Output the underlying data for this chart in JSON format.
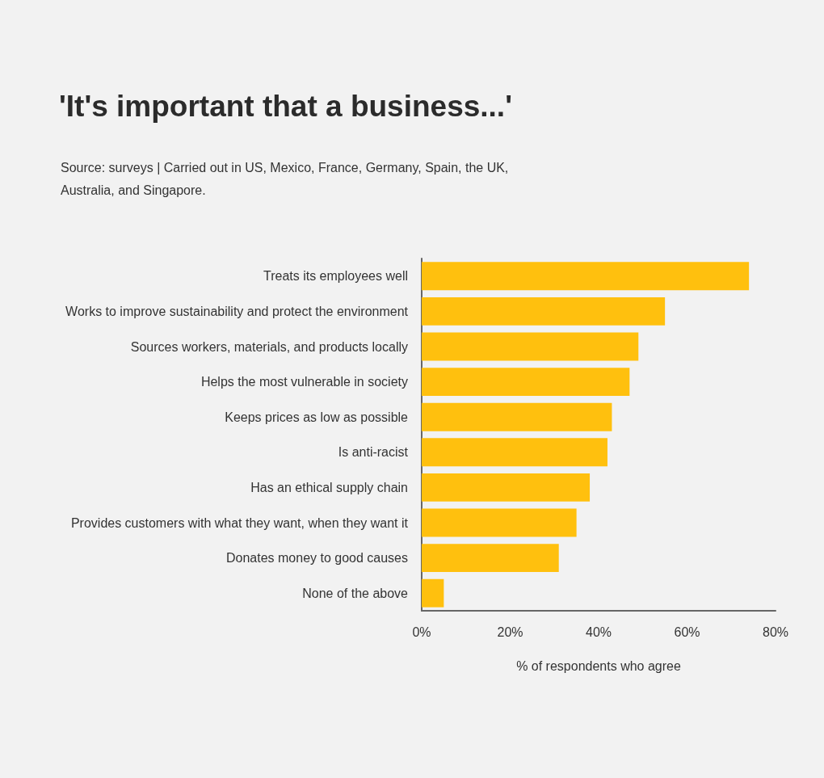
{
  "chart_data": {
    "type": "bar",
    "orientation": "horizontal",
    "title": "'It's important that a business...'",
    "annotations": [
      "Source: surveys | Carried out in US, Mexico, France, Germany, Spain, the UK, Australia, and Singapore."
    ],
    "xlabel": "% of respondents who agree",
    "categories": [
      "Treats its employees well",
      "Works to improve sustainability and protect the environment",
      "Sources workers, materials, and products locally",
      "Helps the most vulnerable in society",
      "Keeps prices as low as possible",
      "Is anti-racist",
      "Has an ethical supply chain",
      "Provides customers with what they want, when they want it",
      "Donates money to good causes",
      "None of the above"
    ],
    "values": [
      74,
      55,
      49,
      47,
      43,
      42,
      38,
      35,
      31,
      5
    ],
    "color": "#ffc00e",
    "xlim": [
      0,
      80
    ],
    "xticks": [
      {
        "value": 0,
        "label": "0%"
      },
      {
        "value": 20,
        "label": "20%"
      },
      {
        "value": 40,
        "label": "40%"
      },
      {
        "value": 60,
        "label": "60%"
      },
      {
        "value": 80,
        "label": "80%"
      }
    ]
  }
}
